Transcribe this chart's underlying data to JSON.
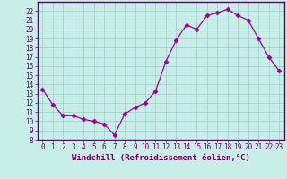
{
  "x": [
    0,
    1,
    2,
    3,
    4,
    5,
    6,
    7,
    8,
    9,
    10,
    11,
    12,
    13,
    14,
    15,
    16,
    17,
    18,
    19,
    20,
    21,
    22,
    23
  ],
  "y": [
    13.5,
    11.8,
    10.6,
    10.6,
    10.2,
    10.0,
    9.7,
    8.5,
    10.8,
    11.5,
    12.0,
    13.3,
    16.5,
    18.8,
    20.5,
    20.0,
    21.5,
    21.8,
    22.2,
    21.5,
    21.0,
    19.0,
    17.0,
    15.5
  ],
  "line_color": "#990099",
  "marker": "D",
  "marker_size": 2.5,
  "bg_color": "#c8eee8",
  "grid_color": "#99cccc",
  "xlabel": "Windchill (Refroidissement éolien,°C)",
  "ylim": [
    8,
    23
  ],
  "xlim_min": -0.5,
  "xlim_max": 23.5,
  "yticks": [
    8,
    9,
    10,
    11,
    12,
    13,
    14,
    15,
    16,
    17,
    18,
    19,
    20,
    21,
    22
  ],
  "xticks": [
    0,
    1,
    2,
    3,
    4,
    5,
    6,
    7,
    8,
    9,
    10,
    11,
    12,
    13,
    14,
    15,
    16,
    17,
    18,
    19,
    20,
    21,
    22,
    23
  ],
  "tick_color": "#660066",
  "axis_color": "#660066",
  "label_fontsize": 6.5,
  "tick_fontsize": 5.5,
  "spine_color": "#660066"
}
